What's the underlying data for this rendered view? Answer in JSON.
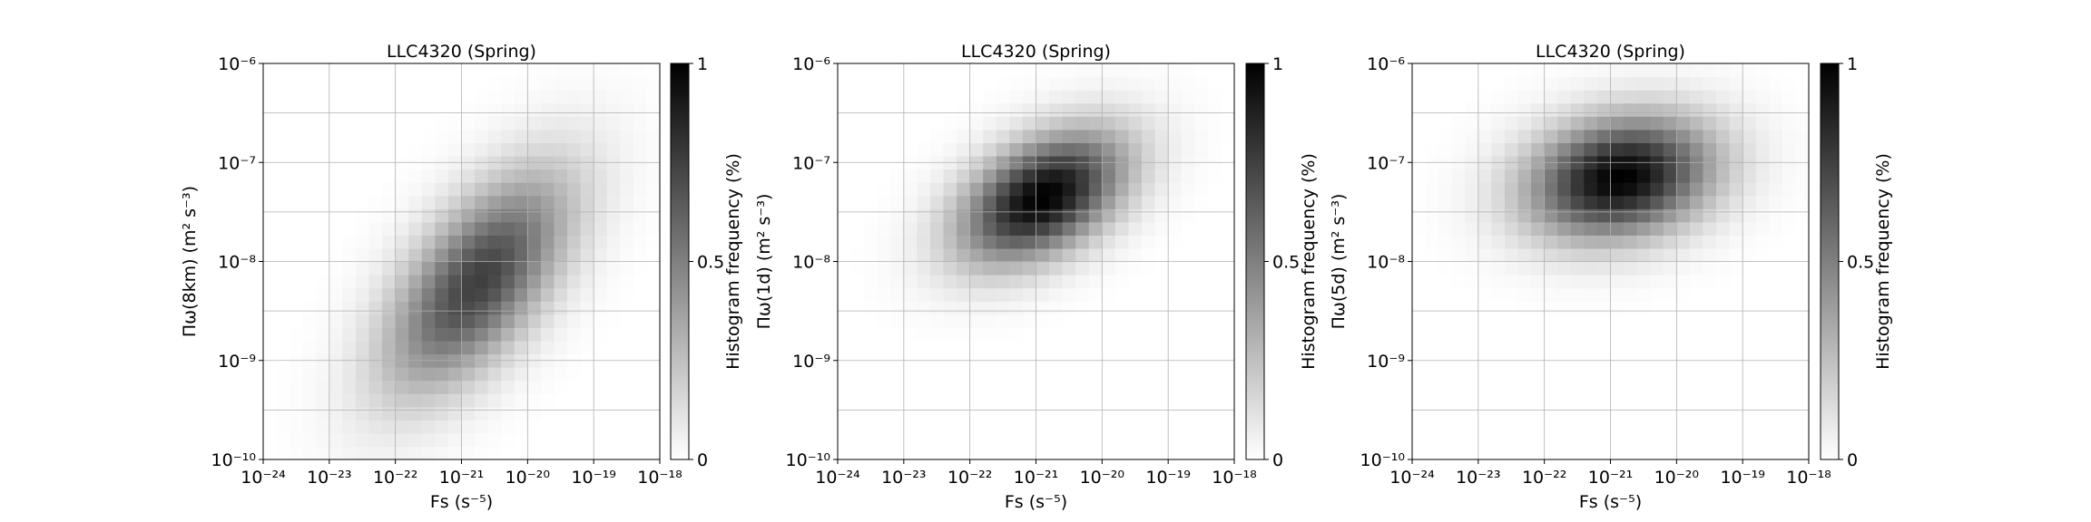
{
  "chart_data": [
    {
      "type": "heatmap",
      "title": "LLC4320 (Spring)",
      "xlabel": "Fs (s⁻⁵)",
      "ylabel": "Πω(8km) (m² s⁻³)",
      "xscale": "log",
      "yscale": "log",
      "xlim": [
        1e-24,
        1e-18
      ],
      "ylim": [
        1e-10,
        1e-06
      ],
      "x_ticks": [
        "10⁻²⁴",
        "10⁻²³",
        "10⁻²²",
        "10⁻²¹",
        "10⁻²⁰",
        "10⁻¹⁹",
        "10⁻¹⁸"
      ],
      "y_ticks": [
        "10⁻¹⁰",
        "10⁻⁹",
        "10⁻⁸",
        "10⁻⁷",
        "10⁻⁶"
      ],
      "grid": true,
      "colorbar": {
        "label": "Histogram frequency (%)",
        "ticks": [
          "0",
          "0.5",
          "1"
        ],
        "range": [
          0,
          1
        ],
        "colormap": "gray_r"
      },
      "density_model": {
        "center_log10_x": -20.75,
        "center_log10_y": -8.2,
        "sigma_log10_x": 0.95,
        "sigma_log10_y": 0.75,
        "correlation": 0.62,
        "peak": 0.75
      }
    },
    {
      "type": "heatmap",
      "title": "LLC4320 (Spring)",
      "xlabel": "Fs (s⁻⁵)",
      "ylabel": "Πω(1d) (m² s⁻³)",
      "xscale": "log",
      "yscale": "log",
      "xlim": [
        1e-24,
        1e-18
      ],
      "ylim": [
        1e-10,
        1e-06
      ],
      "x_ticks": [
        "10⁻²⁴",
        "10⁻²³",
        "10⁻²²",
        "10⁻²¹",
        "10⁻²⁰",
        "10⁻¹⁹",
        "10⁻¹⁸"
      ],
      "y_ticks": [
        "10⁻¹⁰",
        "10⁻⁹",
        "10⁻⁸",
        "10⁻⁷",
        "10⁻⁶"
      ],
      "grid": true,
      "colorbar": {
        "label": "Histogram frequency (%)",
        "ticks": [
          "0",
          "0.5",
          "1"
        ],
        "range": [
          0,
          1
        ],
        "colormap": "gray_r"
      },
      "density_model": {
        "center_log10_x": -20.9,
        "center_log10_y": -7.35,
        "sigma_log10_x": 0.85,
        "sigma_log10_y": 0.45,
        "correlation": 0.45,
        "peak": 1.0
      }
    },
    {
      "type": "heatmap",
      "title": "LLC4320 (Spring)",
      "xlabel": "Fs (s⁻⁵)",
      "ylabel": "Πω(5d) (m² s⁻³)",
      "xscale": "log",
      "yscale": "log",
      "xlim": [
        1e-24,
        1e-18
      ],
      "ylim": [
        1e-10,
        1e-06
      ],
      "x_ticks": [
        "10⁻²⁴",
        "10⁻²³",
        "10⁻²²",
        "10⁻²¹",
        "10⁻²⁰",
        "10⁻¹⁹",
        "10⁻¹⁸"
      ],
      "y_ticks": [
        "10⁻¹⁰",
        "10⁻⁹",
        "10⁻⁸",
        "10⁻⁷",
        "10⁻⁶"
      ],
      "grid": true,
      "colorbar": {
        "label": "Histogram frequency (%)",
        "ticks": [
          "0",
          "0.5",
          "1"
        ],
        "range": [
          0,
          1
        ],
        "colormap": "gray_r"
      },
      "density_model": {
        "center_log10_x": -20.85,
        "center_log10_y": -7.15,
        "sigma_log10_x": 0.95,
        "sigma_log10_y": 0.42,
        "correlation": 0.2,
        "peak": 1.0
      }
    }
  ]
}
